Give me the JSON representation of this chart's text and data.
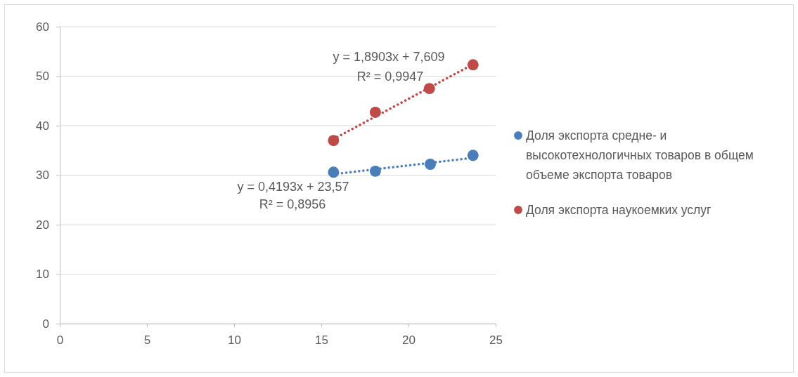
{
  "chart_data": {
    "type": "scatter",
    "xlim": [
      0,
      25
    ],
    "xticks": [
      0,
      5,
      10,
      15,
      20,
      25
    ],
    "ylim": [
      0,
      60
    ],
    "yticks": [
      0,
      10,
      20,
      30,
      40,
      50,
      60
    ],
    "grid": "y",
    "legend": "right",
    "marker": "circle",
    "series": [
      {
        "name": "Доля экспорта средне- и высокотехнологичных товаров в общем объеме экспорта товаров",
        "color": "#4a7ebb",
        "x": [
          15.7,
          18.1,
          21.25,
          23.7
        ],
        "values": [
          30.6,
          30.8,
          32.2,
          34.0
        ]
      },
      {
        "name": "Доля экспорта наукоемких услуг",
        "color": "#be4b48",
        "x": [
          15.7,
          18.1,
          21.2,
          23.7
        ],
        "values": [
          37.0,
          42.7,
          47.5,
          52.3
        ]
      },
      {
        "type": "line",
        "color": "#4a7ebb",
        "line_style": "dotted",
        "marker": "none",
        "x": [
          15.7,
          23.7
        ],
        "values": [
          30.2,
          33.5
        ]
      },
      {
        "type": "line",
        "color": "#be4b48",
        "line_style": "dotted",
        "marker": "none",
        "x": [
          15.7,
          23.7
        ],
        "values": [
          37.3,
          52.4
        ]
      }
    ],
    "annotations": [
      "y = 1,8903x + 7,609",
      "R² = 0,9947",
      "y = 0,4193x + 23,57",
      "R² = 0,8956"
    ]
  }
}
